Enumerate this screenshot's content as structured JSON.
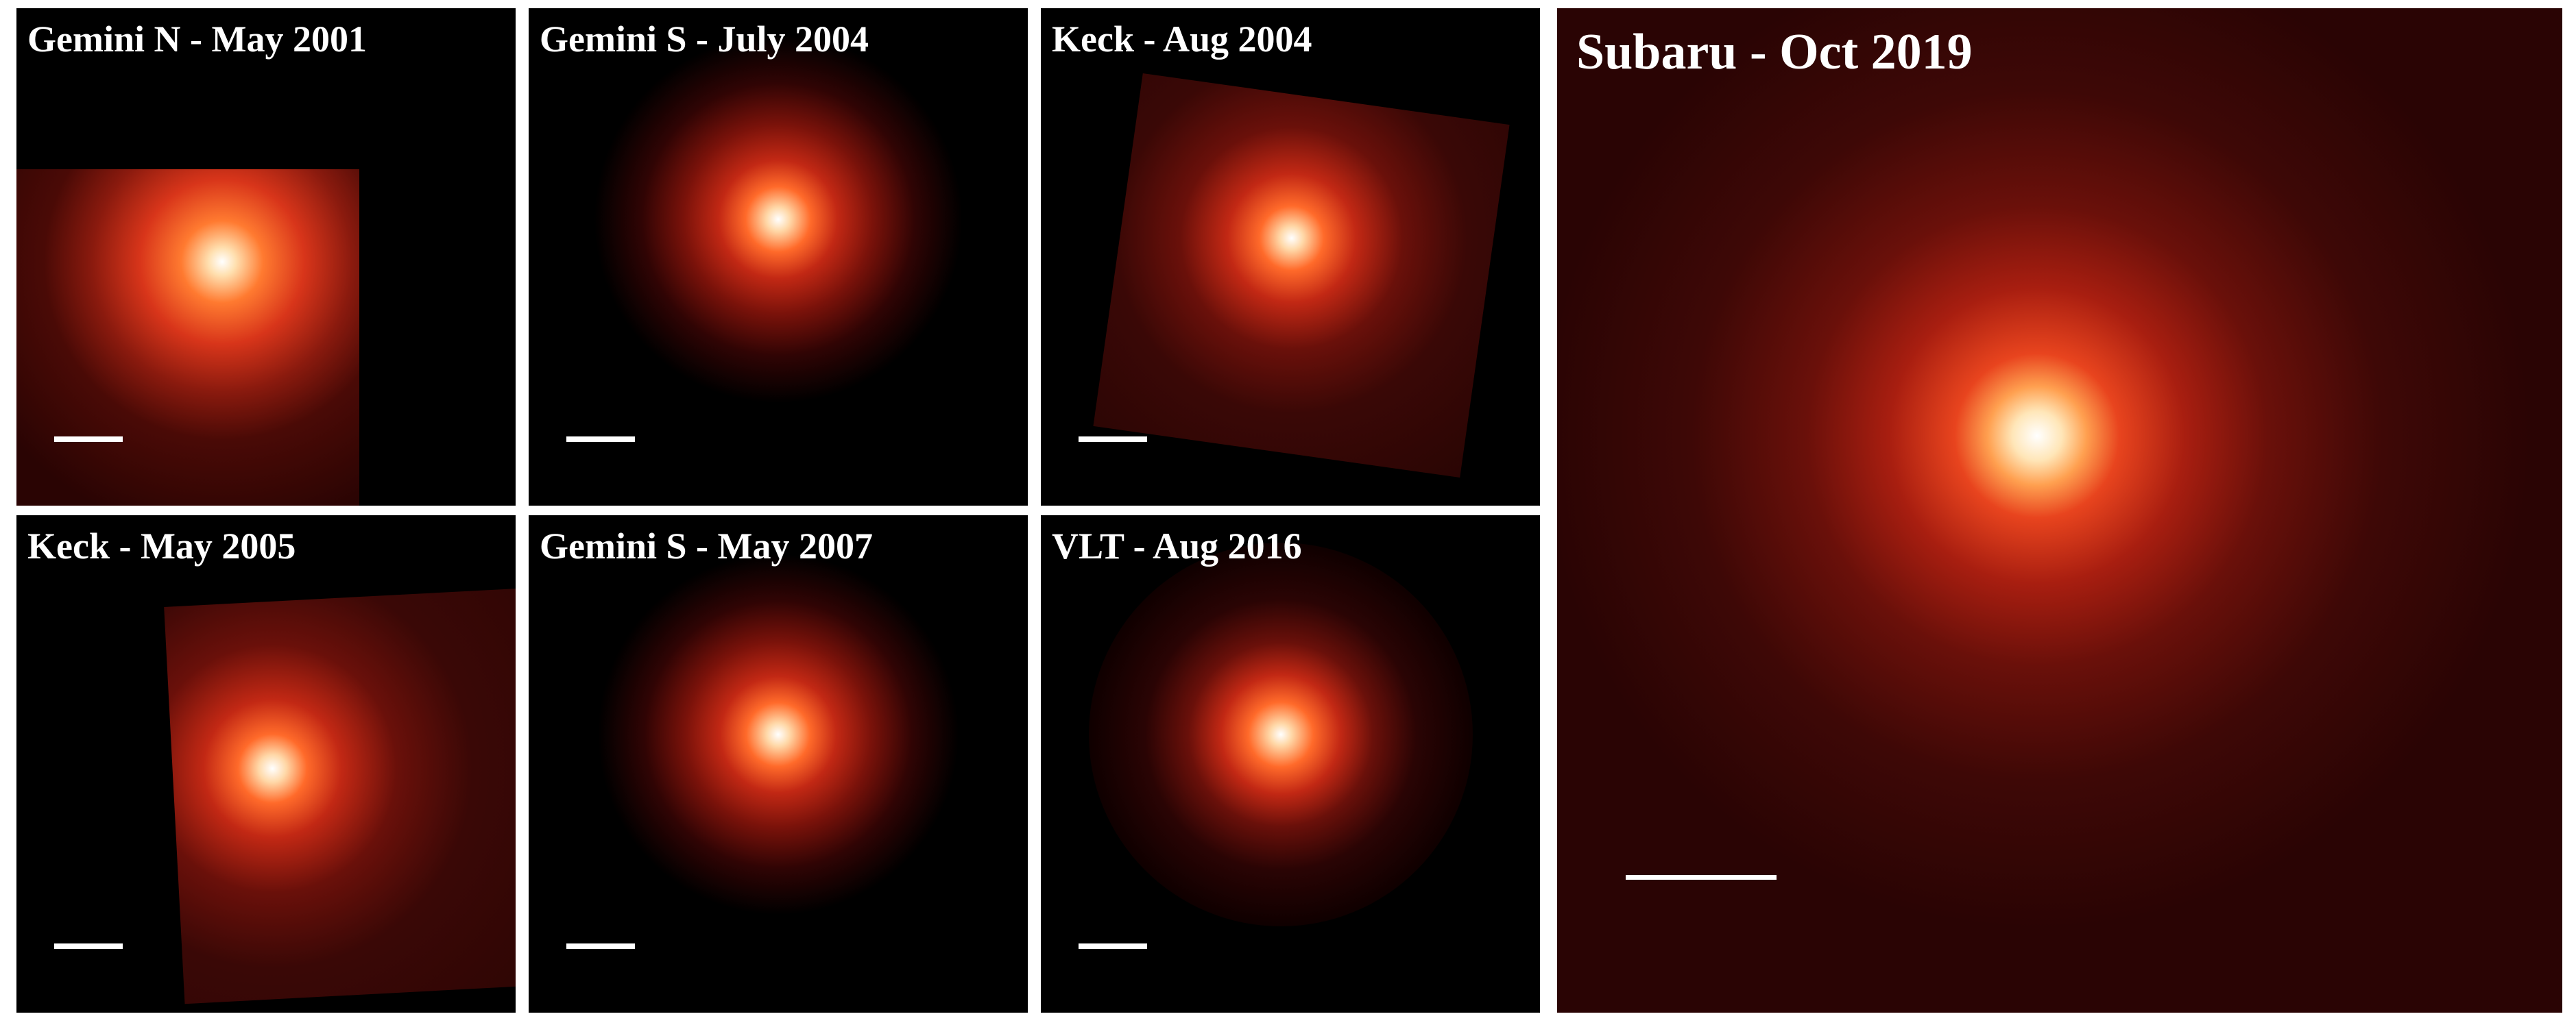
{
  "panels": [
    {
      "title": "Gemini N - May 2001"
    },
    {
      "title": "Gemini S - July 2004"
    },
    {
      "title": "Keck - Aug 2004"
    },
    {
      "title": "Keck - May 2005"
    },
    {
      "title": "Gemini S - May 2007"
    },
    {
      "title": "VLT - Aug 2016"
    },
    {
      "title": "Subaru - Oct 2019"
    }
  ]
}
